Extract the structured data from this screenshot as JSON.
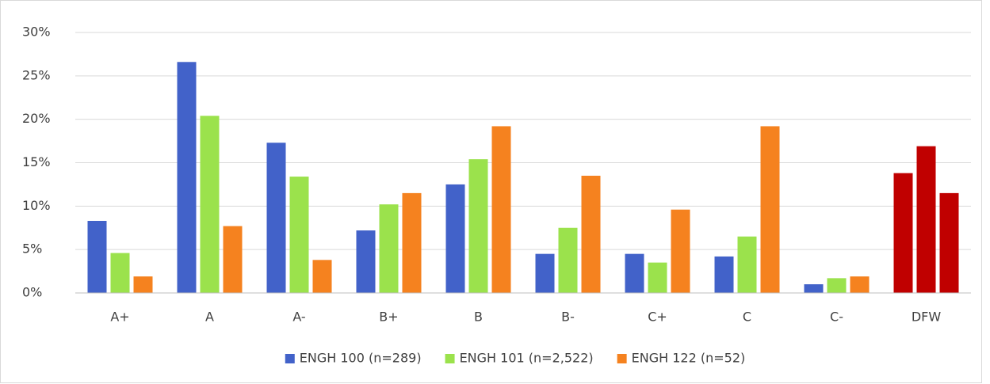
{
  "chart_data": {
    "type": "bar",
    "categories": [
      "A+",
      "A",
      "A-",
      "B+",
      "B",
      "B-",
      "C+",
      "C",
      "C-",
      "DFW"
    ],
    "series": [
      {
        "name": "ENGH 100 (n=289)",
        "color": "#4262c9",
        "colors": [
          "#4262c9",
          "#4262c9",
          "#4262c9",
          "#4262c9",
          "#4262c9",
          "#4262c9",
          "#4262c9",
          "#4262c9",
          "#4262c9",
          "#c00000"
        ],
        "values": [
          8.3,
          26.6,
          17.3,
          7.2,
          12.5,
          4.5,
          4.5,
          4.2,
          1.0,
          13.8
        ]
      },
      {
        "name": "ENGH 101 (n=2,522)",
        "color": "#9be24c",
        "colors": [
          "#9be24c",
          "#9be24c",
          "#9be24c",
          "#9be24c",
          "#9be24c",
          "#9be24c",
          "#9be24c",
          "#9be24c",
          "#9be24c",
          "#c00000"
        ],
        "values": [
          4.6,
          20.4,
          13.4,
          10.2,
          15.4,
          7.5,
          3.5,
          6.5,
          1.7,
          16.9
        ]
      },
      {
        "name": "ENGH 122 (n=52)",
        "color": "#f5821f",
        "colors": [
          "#f5821f",
          "#f5821f",
          "#f5821f",
          "#f5821f",
          "#f5821f",
          "#f5821f",
          "#f5821f",
          "#f5821f",
          "#f5821f",
          "#c00000"
        ],
        "values": [
          1.9,
          7.7,
          3.8,
          11.5,
          19.2,
          13.5,
          9.6,
          19.2,
          1.9,
          11.5
        ]
      }
    ],
    "ylim": [
      0,
      30
    ],
    "yticks": [
      {
        "value": 0,
        "label": "0%"
      },
      {
        "value": 5,
        "label": "5%"
      },
      {
        "value": 10,
        "label": "10%"
      },
      {
        "value": 15,
        "label": "15%"
      },
      {
        "value": 20,
        "label": "20%"
      },
      {
        "value": 25,
        "label": "25%"
      },
      {
        "value": 30,
        "label": "30%"
      }
    ],
    "grid": true,
    "legend": "bottom"
  }
}
